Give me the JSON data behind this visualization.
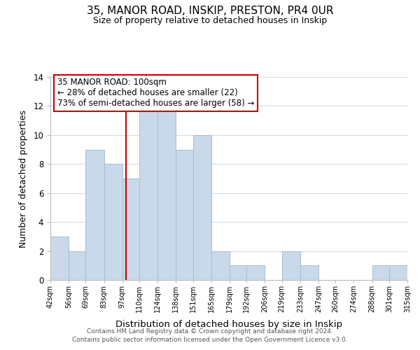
{
  "title": "35, MANOR ROAD, INSKIP, PRESTON, PR4 0UR",
  "subtitle": "Size of property relative to detached houses in Inskip",
  "xlabel": "Distribution of detached houses by size in Inskip",
  "ylabel": "Number of detached properties",
  "bin_edges": [
    42,
    56,
    69,
    83,
    97,
    110,
    124,
    138,
    151,
    165,
    179,
    192,
    206,
    219,
    233,
    247,
    260,
    274,
    288,
    301,
    315
  ],
  "bin_heights": [
    3,
    2,
    9,
    8,
    7,
    12,
    12,
    9,
    10,
    2,
    1,
    1,
    0,
    2,
    1,
    0,
    0,
    0,
    1,
    1
  ],
  "bar_color": "#c9d9ea",
  "bar_edgecolor": "#a8bece",
  "vline_x": 100,
  "vline_color": "#cc0000",
  "annotation_title": "35 MANOR ROAD: 100sqm",
  "annotation_line1": "← 28% of detached houses are smaller (22)",
  "annotation_line2": "73% of semi-detached houses are larger (58) →",
  "annotation_box_edgecolor": "#cc0000",
  "annotation_box_facecolor": "#ffffff",
  "ylim": [
    0,
    14
  ],
  "yticks": [
    0,
    2,
    4,
    6,
    8,
    10,
    12,
    14
  ],
  "tick_labels": [
    "42sqm",
    "56sqm",
    "69sqm",
    "83sqm",
    "97sqm",
    "110sqm",
    "124sqm",
    "138sqm",
    "151sqm",
    "165sqm",
    "179sqm",
    "192sqm",
    "206sqm",
    "219sqm",
    "233sqm",
    "247sqm",
    "260sqm",
    "274sqm",
    "288sqm",
    "301sqm",
    "315sqm"
  ],
  "footnote1": "Contains HM Land Registry data © Crown copyright and database right 2024.",
  "footnote2": "Contains public sector information licensed under the Open Government Licence v3.0.",
  "background_color": "#ffffff",
  "grid_color": "#d0dce8"
}
